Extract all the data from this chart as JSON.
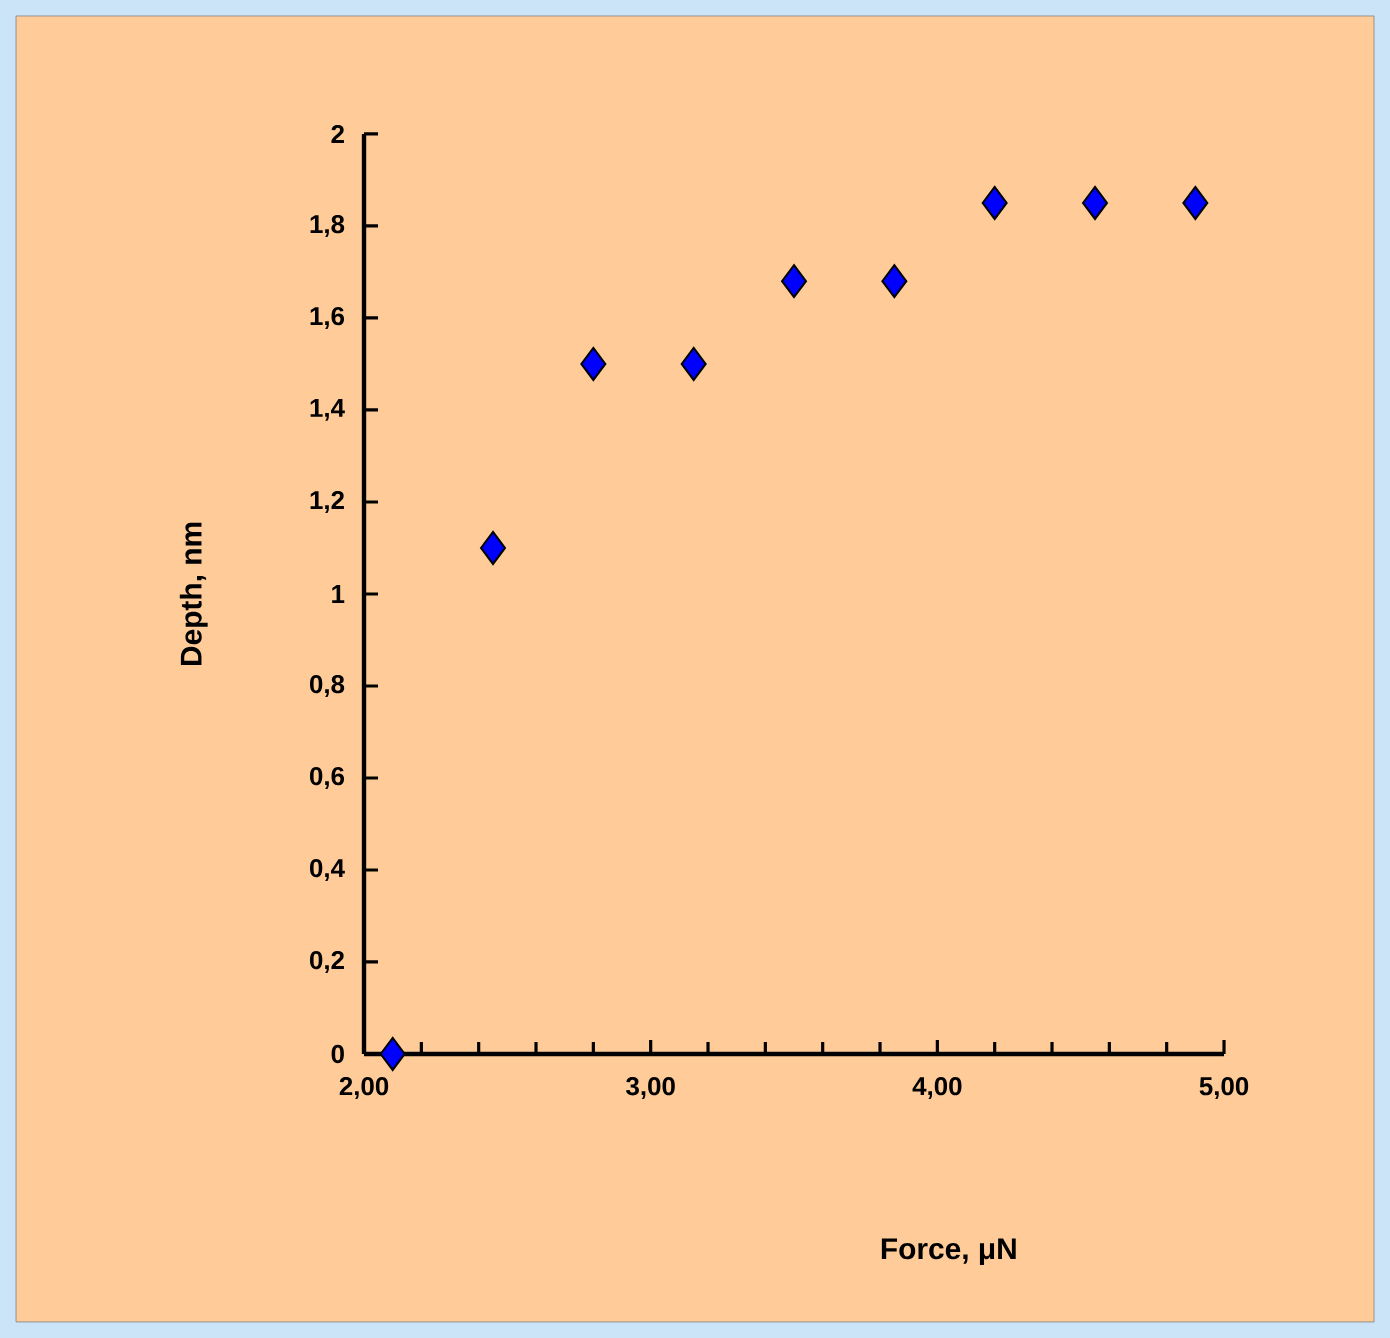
{
  "chart_data": {
    "type": "scatter",
    "xlabel": "Force, μN",
    "ylabel": "Depth, nm",
    "x": [
      2.1,
      2.45,
      2.8,
      3.15,
      3.5,
      3.85,
      4.2,
      4.55,
      4.9
    ],
    "series": [
      {
        "color": "#0000ff",
        "values": [
          0,
          1.1,
          1.5,
          1.5,
          1.68,
          1.68,
          1.85,
          1.85,
          1.85
        ]
      }
    ],
    "xlim": [
      2,
      5
    ],
    "ylim": [
      0,
      2
    ],
    "xticks": [
      {
        "value": 2,
        "label": "2,00"
      },
      {
        "value": 3,
        "label": "3,00"
      },
      {
        "value": 4,
        "label": "4,00"
      },
      {
        "value": 5,
        "label": "5,00"
      }
    ],
    "yticks": [
      0,
      {
        "value": 0.2,
        "label": "0,2"
      },
      {
        "value": 0.4,
        "label": "0,4"
      },
      {
        "value": 0.6,
        "label": "0,6"
      },
      {
        "value": 0.8,
        "label": "0,8"
      },
      1,
      {
        "value": 1.2,
        "label": "1,2"
      },
      {
        "value": 1.4,
        "label": "1,4"
      },
      {
        "value": 1.6,
        "label": "1,6"
      },
      {
        "value": 1.8,
        "label": "1,8"
      },
      2
    ],
    "marker": "diamond"
  }
}
